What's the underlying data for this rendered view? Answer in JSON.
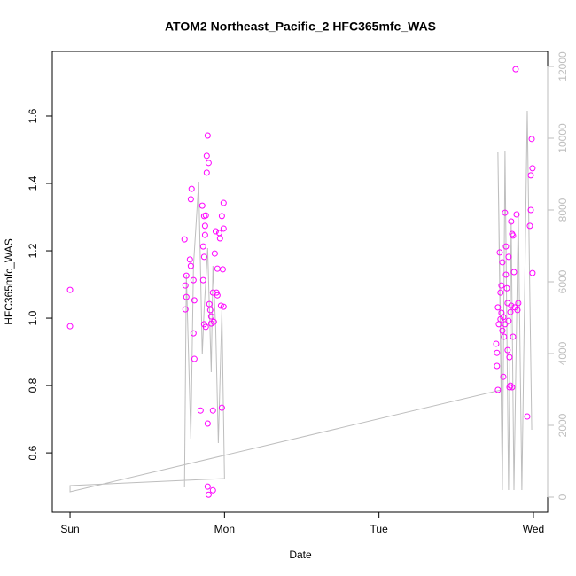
{
  "chart_data": {
    "type": "scatter",
    "title": "ATOM2 Northeast_Pacific_2 HFC365mfc_WAS",
    "x_label": "Date",
    "y_label": "HFC365mfc_WAS",
    "xlim": [
      -0.115,
      3.092
    ],
    "xticks": [
      {
        "value": 0,
        "label": "Sun"
      },
      {
        "value": 1,
        "label": "Mon"
      },
      {
        "value": 2,
        "label": "Tue"
      },
      {
        "value": 3,
        "label": "Wed"
      }
    ],
    "ylim": [
      0.424,
      1.792
    ],
    "yticks": [
      0.6,
      0.8,
      {
        "value": 1,
        "label": "1.0"
      },
      1.2,
      1.4,
      1.6
    ],
    "y2lim": [
      -420,
      12420
    ],
    "y2ticks": [
      0,
      2000,
      4000,
      6000,
      8000,
      10000,
      12000
    ],
    "y2_color": "#bebebe",
    "series": [
      {
        "type": "scatter",
        "color": "#ff00ff",
        "x": [
          0,
          0,
          0.741,
          0.753,
          0.747,
          0.753,
          0.747,
          0.776,
          0.782,
          0.787,
          0.782,
          0.799,
          0.805,
          0.799,
          0.805,
          0.845,
          0.856,
          0.862,
          0.868,
          0.874,
          0.868,
          0.862,
          0.868,
          0.874,
          0.879,
          0.885,
          0.891,
          0.897,
          0.885,
          0.891,
          0.891,
          0.897,
          0.879,
          0.902,
          0.908,
          0.914,
          0.925,
          0.925,
          0.931,
          0.937,
          0.943,
          0.948,
          0.954,
          0.966,
          0.971,
          0.977,
          0.983,
          0.983,
          0.989,
          0.994,
          0.994,
          0.994,
          0.914,
          0.954,
          0.925,
          2.759,
          2.764,
          2.77,
          2.764,
          2.77,
          2.782,
          2.787,
          2.787,
          2.793,
          2.799,
          2.799,
          2.805,
          2.81,
          2.816,
          2.822,
          2.828,
          2.833,
          2.839,
          2.845,
          2.851,
          2.856,
          2.862,
          2.868,
          2.874,
          2.879,
          2.885,
          2.891,
          2.897,
          2.902,
          2.96,
          2.977,
          2.983,
          2.989,
          2.994,
          2.983,
          2.994,
          2.793,
          2.805,
          2.822,
          2.833,
          2.851,
          2.839,
          2.856,
          2.868,
          2.776,
          2.816,
          2.845,
          2.862
        ],
        "values": [
          1.084,
          0.976,
          1.234,
          1.126,
          1.097,
          1.063,
          1.026,
          1.174,
          1.155,
          1.384,
          1.353,
          1.113,
          0.879,
          0.955,
          1.053,
          0.726,
          1.334,
          1.213,
          1.303,
          1.247,
          1.182,
          1.113,
          0.982,
          1.274,
          1.305,
          1.482,
          1.542,
          1.461,
          1.432,
          0.687,
          0.5,
          0.476,
          0.974,
          1.042,
          1.024,
          1.005,
          0.489,
          0.726,
          0.989,
          1.192,
          1.258,
          1.076,
          1.147,
          1.253,
          1.237,
          1.037,
          1.303,
          0.734,
          1.145,
          1.342,
          1.266,
          1.034,
          0.984,
          1.068,
          1.076,
          0.924,
          0.858,
          0.787,
          0.897,
          1.032,
          1.195,
          1.076,
          0.997,
          1.097,
          1.166,
          0.963,
          0.826,
          0.945,
          1.313,
          1.213,
          1.089,
          0.905,
          1.182,
          0.884,
          0.8,
          1.287,
          1.25,
          1.245,
          1.137,
          1.032,
          1.739,
          1.308,
          1.024,
          1.045,
          0.708,
          1.274,
          1.321,
          1.532,
          1.445,
          1.424,
          1.134,
          1.016,
          1.003,
          1.129,
          1.045,
          1.018,
          0.992,
          1.037,
          0.945,
          0.982,
          0.982,
          0.795,
          0.795
        ]
      },
      {
        "type": "line",
        "axis": "y2",
        "color": "#bebebe",
        "x": [
          0.741,
          0.753,
          0.782,
          0.799,
          0.833,
          0.856,
          0.868,
          0.891,
          0.914,
          0.925,
          0.943,
          0.96,
          0.983,
          1.0,
          0,
          0,
          2.793,
          2.77,
          2.799,
          2.816,
          2.839,
          2.856,
          2.874,
          2.902,
          2.925,
          2.96,
          2.989
        ],
        "values": [
          272,
          6197,
          1630,
          6444,
          8790,
          3975,
          5210,
          6938,
          3481,
          6444,
          4716,
          1506,
          5210,
          518,
          321,
          148,
          2988,
          9605,
          198,
          9654,
          198,
          7679,
          198,
          7926,
          198,
          10765,
          1877
        ]
      }
    ]
  }
}
